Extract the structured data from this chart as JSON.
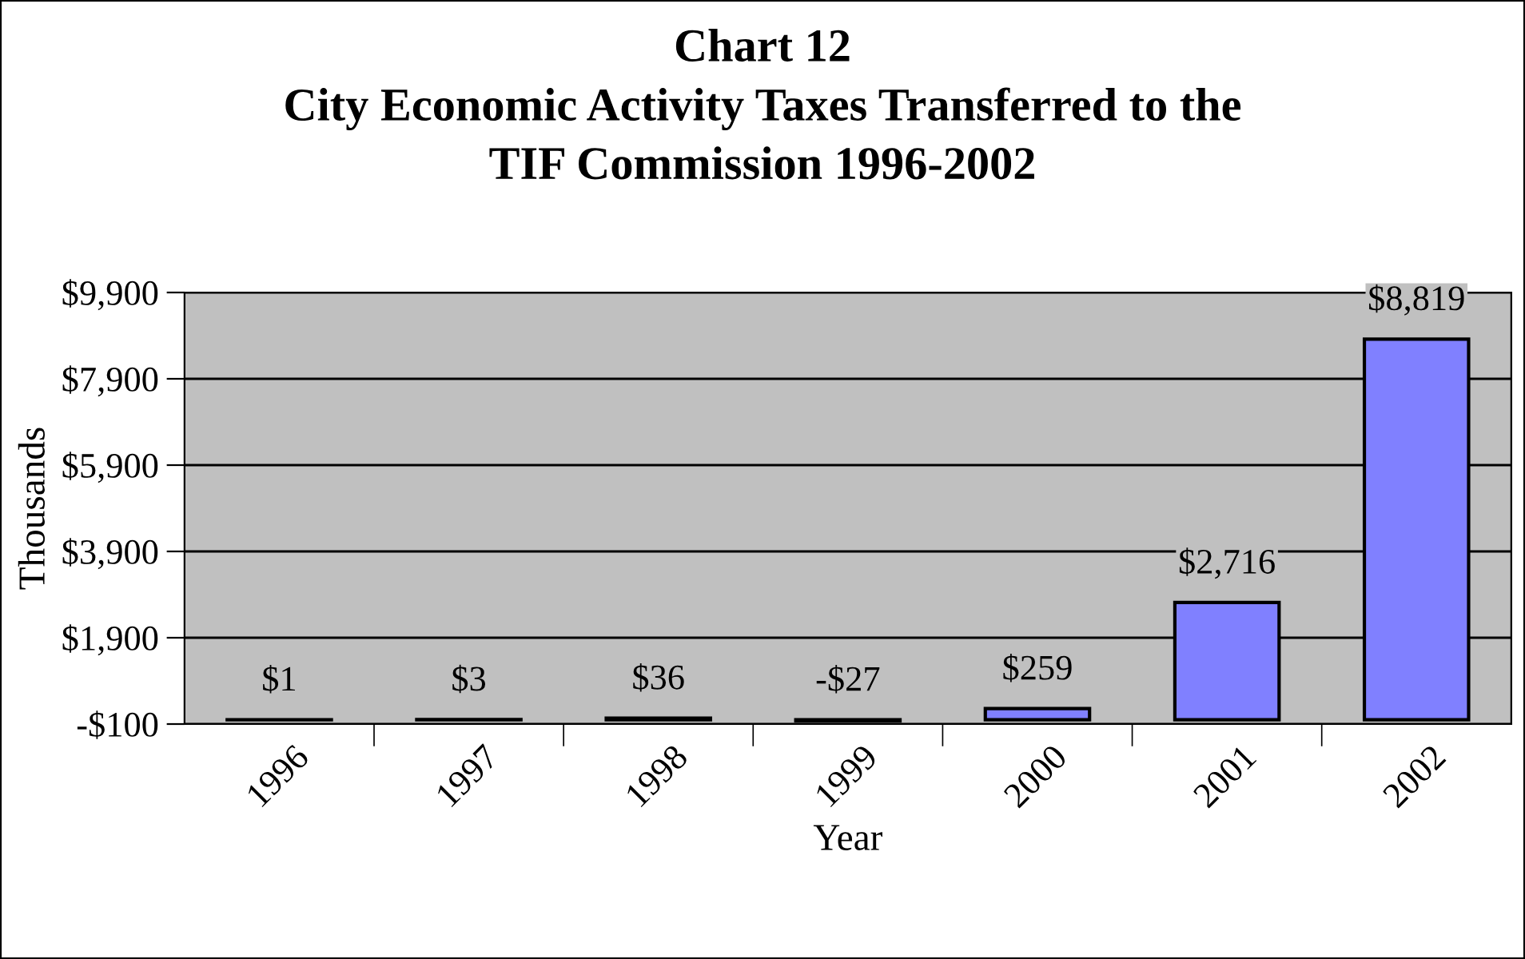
{
  "chart_data": {
    "type": "bar",
    "title": "Chart 12\nCity Economic Activity Taxes Transferred to the\nTIF Commission 1996-2002",
    "xlabel": "Year",
    "ylabel": "Thousands",
    "categories": [
      "1996",
      "1997",
      "1998",
      "1999",
      "2000",
      "2001",
      "2002"
    ],
    "values": [
      1,
      3,
      36,
      -27,
      259,
      2716,
      8819
    ],
    "value_labels": [
      "$1",
      "$3",
      "$36",
      "-$27",
      "$259",
      "$2,716",
      "$8,819"
    ],
    "color": "#8080ff",
    "ylim": [
      -100,
      9900
    ],
    "yticks": [
      {
        "value": -100,
        "label": "-$100"
      },
      {
        "value": 1900,
        "label": "$1,900"
      },
      {
        "value": 3900,
        "label": "$3,900"
      },
      {
        "value": 5900,
        "label": "$5,900"
      },
      {
        "value": 7900,
        "label": "$7,900"
      },
      {
        "value": 9900,
        "label": "$9,900"
      }
    ],
    "grid": "y",
    "legend": false
  }
}
